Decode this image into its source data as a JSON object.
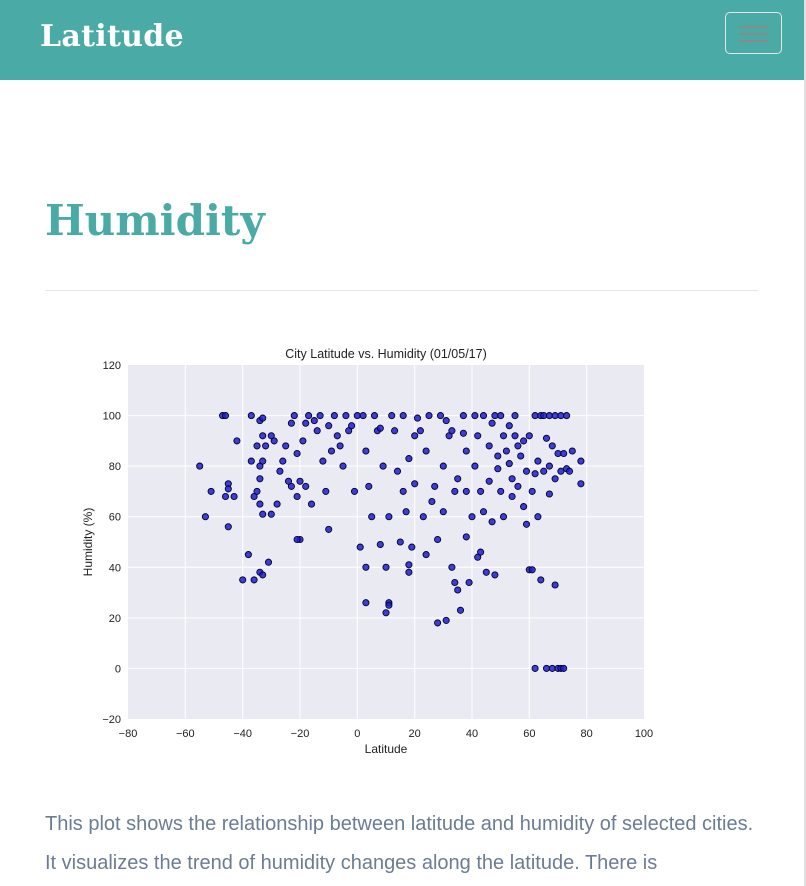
{
  "header": {
    "brand": "Latitude",
    "menu_icon": "hamburger-icon"
  },
  "page": {
    "title": "Humidity",
    "description": "This plot shows the relationship between latitude and humidity of selected cities. It visualizes the trend of humidity changes along the latitude. There is"
  },
  "chart_data": {
    "type": "scatter",
    "title": "City Latitude vs. Humidity (01/05/17)",
    "xlabel": "Latitude",
    "ylabel": "Humidity (%)",
    "xlim": [
      -80,
      100
    ],
    "ylim": [
      -20,
      120
    ],
    "xticks": [
      "−80",
      "−60",
      "−40",
      "−20",
      "0",
      "20",
      "40",
      "60",
      "80",
      "100"
    ],
    "yticks": [
      "−20",
      "0",
      "20",
      "40",
      "60",
      "80",
      "100",
      "120"
    ],
    "grid": true,
    "colors": {
      "plot_background": "#eaeaf2",
      "grid": "#ffffff",
      "marker": "#1f1fcc",
      "marker_edge": "#000033"
    },
    "points": [
      [
        -55,
        80
      ],
      [
        -53,
        60
      ],
      [
        -51,
        70
      ],
      [
        -47,
        100
      ],
      [
        -46,
        100
      ],
      [
        -45,
        73
      ],
      [
        -45,
        71
      ],
      [
        -46,
        68
      ],
      [
        -45,
        56
      ],
      [
        -43,
        68
      ],
      [
        -42,
        90
      ],
      [
        -40,
        35
      ],
      [
        -38,
        45
      ],
      [
        -37,
        82
      ],
      [
        -37,
        100
      ],
      [
        -36,
        35
      ],
      [
        -35,
        88
      ],
      [
        -34,
        98
      ],
      [
        -33,
        99
      ],
      [
        -33,
        92
      ],
      [
        -32,
        88
      ],
      [
        -34,
        80
      ],
      [
        -34,
        75
      ],
      [
        -35,
        70
      ],
      [
        -36,
        68
      ],
      [
        -34,
        65
      ],
      [
        -33,
        61
      ],
      [
        -33,
        82
      ],
      [
        -34,
        38
      ],
      [
        -33,
        37
      ],
      [
        -31,
        42
      ],
      [
        -30,
        92
      ],
      [
        -30,
        61
      ],
      [
        -29,
        90
      ],
      [
        -28,
        65
      ],
      [
        -27,
        78
      ],
      [
        -26,
        82
      ],
      [
        -25,
        88
      ],
      [
        -24,
        74
      ],
      [
        -23,
        72
      ],
      [
        -23,
        97
      ],
      [
        -22,
        100
      ],
      [
        -21,
        85
      ],
      [
        -21,
        68
      ],
      [
        -20,
        51
      ],
      [
        -21,
        51
      ],
      [
        -20,
        74
      ],
      [
        -19,
        90
      ],
      [
        -18,
        72
      ],
      [
        -18,
        97
      ],
      [
        -17,
        100
      ],
      [
        -16,
        65
      ],
      [
        -15,
        98
      ],
      [
        -14,
        94
      ],
      [
        -13,
        100
      ],
      [
        -12,
        82
      ],
      [
        -11,
        70
      ],
      [
        -10,
        96
      ],
      [
        -10,
        55
      ],
      [
        -9,
        86
      ],
      [
        -8,
        100
      ],
      [
        -7,
        92
      ],
      [
        -6,
        88
      ],
      [
        -5,
        80
      ],
      [
        -4,
        100
      ],
      [
        -3,
        94
      ],
      [
        -2,
        96
      ],
      [
        0,
        100
      ],
      [
        -1,
        70
      ],
      [
        1,
        48
      ],
      [
        2,
        100
      ],
      [
        3,
        86
      ],
      [
        3,
        40
      ],
      [
        3,
        26
      ],
      [
        4,
        72
      ],
      [
        5,
        60
      ],
      [
        6,
        100
      ],
      [
        7,
        94
      ],
      [
        8,
        95
      ],
      [
        8,
        49
      ],
      [
        9,
        80
      ],
      [
        10,
        40
      ],
      [
        10,
        22
      ],
      [
        11,
        60
      ],
      [
        11,
        26
      ],
      [
        11,
        25
      ],
      [
        12,
        100
      ],
      [
        13,
        94
      ],
      [
        14,
        78
      ],
      [
        15,
        50
      ],
      [
        16,
        100
      ],
      [
        16,
        70
      ],
      [
        17,
        62
      ],
      [
        18,
        41
      ],
      [
        18,
        38
      ],
      [
        18,
        83
      ],
      [
        19,
        48
      ],
      [
        20,
        92
      ],
      [
        20,
        73
      ],
      [
        21,
        99
      ],
      [
        22,
        94
      ],
      [
        23,
        60
      ],
      [
        24,
        45
      ],
      [
        24,
        86
      ],
      [
        25,
        100
      ],
      [
        26,
        66
      ],
      [
        27,
        72
      ],
      [
        28,
        51
      ],
      [
        28,
        18
      ],
      [
        29,
        100
      ],
      [
        30,
        80
      ],
      [
        30,
        62
      ],
      [
        31,
        98
      ],
      [
        31,
        19
      ],
      [
        32,
        92
      ],
      [
        33,
        94
      ],
      [
        33,
        40
      ],
      [
        34,
        34
      ],
      [
        34,
        70
      ],
      [
        35,
        31
      ],
      [
        35,
        75
      ],
      [
        36,
        23
      ],
      [
        37,
        100
      ],
      [
        37,
        93
      ],
      [
        38,
        86
      ],
      [
        38,
        70
      ],
      [
        38,
        52
      ],
      [
        39,
        34
      ],
      [
        40,
        60
      ],
      [
        41,
        100
      ],
      [
        41,
        80
      ],
      [
        42,
        44
      ],
      [
        42,
        92
      ],
      [
        43,
        70
      ],
      [
        43,
        46
      ],
      [
        44,
        100
      ],
      [
        44,
        62
      ],
      [
        45,
        38
      ],
      [
        46,
        88
      ],
      [
        46,
        74
      ],
      [
        47,
        97
      ],
      [
        47,
        58
      ],
      [
        48,
        100
      ],
      [
        48,
        37
      ],
      [
        49,
        84
      ],
      [
        49,
        79
      ],
      [
        50,
        100
      ],
      [
        50,
        70
      ],
      [
        51,
        92
      ],
      [
        51,
        60
      ],
      [
        52,
        86
      ],
      [
        53,
        81
      ],
      [
        53,
        96
      ],
      [
        54,
        75
      ],
      [
        54,
        68
      ],
      [
        55,
        92
      ],
      [
        55,
        100
      ],
      [
        56,
        88
      ],
      [
        56,
        72
      ],
      [
        57,
        84
      ],
      [
        58,
        90
      ],
      [
        58,
        64
      ],
      [
        59,
        78
      ],
      [
        59,
        57
      ],
      [
        60,
        92
      ],
      [
        60,
        39
      ],
      [
        61,
        39
      ],
      [
        61,
        70
      ],
      [
        62,
        100
      ],
      [
        62,
        77
      ],
      [
        62,
        0
      ],
      [
        63,
        82
      ],
      [
        63,
        60
      ],
      [
        64,
        100
      ],
      [
        64,
        35
      ],
      [
        65,
        100
      ],
      [
        65,
        78
      ],
      [
        66,
        91
      ],
      [
        66,
        0
      ],
      [
        67,
        100
      ],
      [
        67,
        80
      ],
      [
        67,
        69
      ],
      [
        68,
        88
      ],
      [
        68,
        0
      ],
      [
        69,
        100
      ],
      [
        69,
        33
      ],
      [
        69,
        75
      ],
      [
        70,
        85
      ],
      [
        70,
        0
      ],
      [
        71,
        100
      ],
      [
        71,
        78
      ],
      [
        71,
        0
      ],
      [
        72,
        0
      ],
      [
        72,
        85
      ],
      [
        73,
        100
      ],
      [
        73,
        79
      ],
      [
        74,
        78
      ],
      [
        75,
        86
      ],
      [
        78,
        82
      ],
      [
        78,
        73
      ]
    ]
  }
}
